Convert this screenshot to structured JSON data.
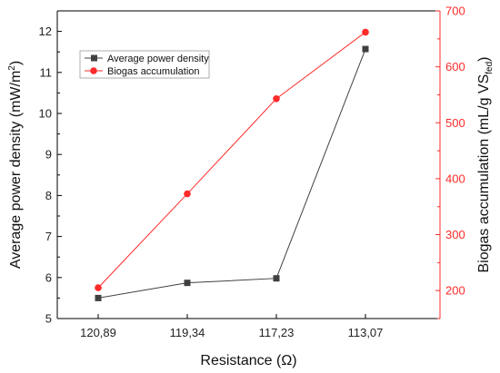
{
  "chart_data": {
    "type": "line",
    "title": "",
    "xlabel": "Resistance (Ω)",
    "categories": [
      "120,89",
      "119,34",
      "117,23",
      "113,07"
    ],
    "ylabel_left": {
      "prefix": "Average power density (mW/m",
      "sup": "2",
      "suffix": ")"
    },
    "ylabel_right": {
      "prefix": "Biogas accumulation (mL/g VS",
      "sub": "fed",
      "suffix": ")"
    },
    "ylim_left": [
      5,
      12.5
    ],
    "yticks_left": [
      "5",
      "6",
      "7",
      "8",
      "9",
      "10",
      "11",
      "12"
    ],
    "ylim_right": [
      150,
      700
    ],
    "yticks_right": [
      "200",
      "300",
      "400",
      "500",
      "600",
      "700"
    ],
    "grid": false,
    "legend_position": "top-left",
    "series": [
      {
        "name": "Average power density",
        "axis": "left",
        "marker": "square",
        "color": "#404040",
        "values": [
          5.5,
          5.87,
          5.98,
          11.57
        ]
      },
      {
        "name": "Biogas accumulation",
        "axis": "right",
        "marker": "circle",
        "color": "#ff2a2a",
        "values": [
          205,
          373,
          543,
          662
        ]
      }
    ],
    "right_axis_color": "#ff2a2a"
  }
}
